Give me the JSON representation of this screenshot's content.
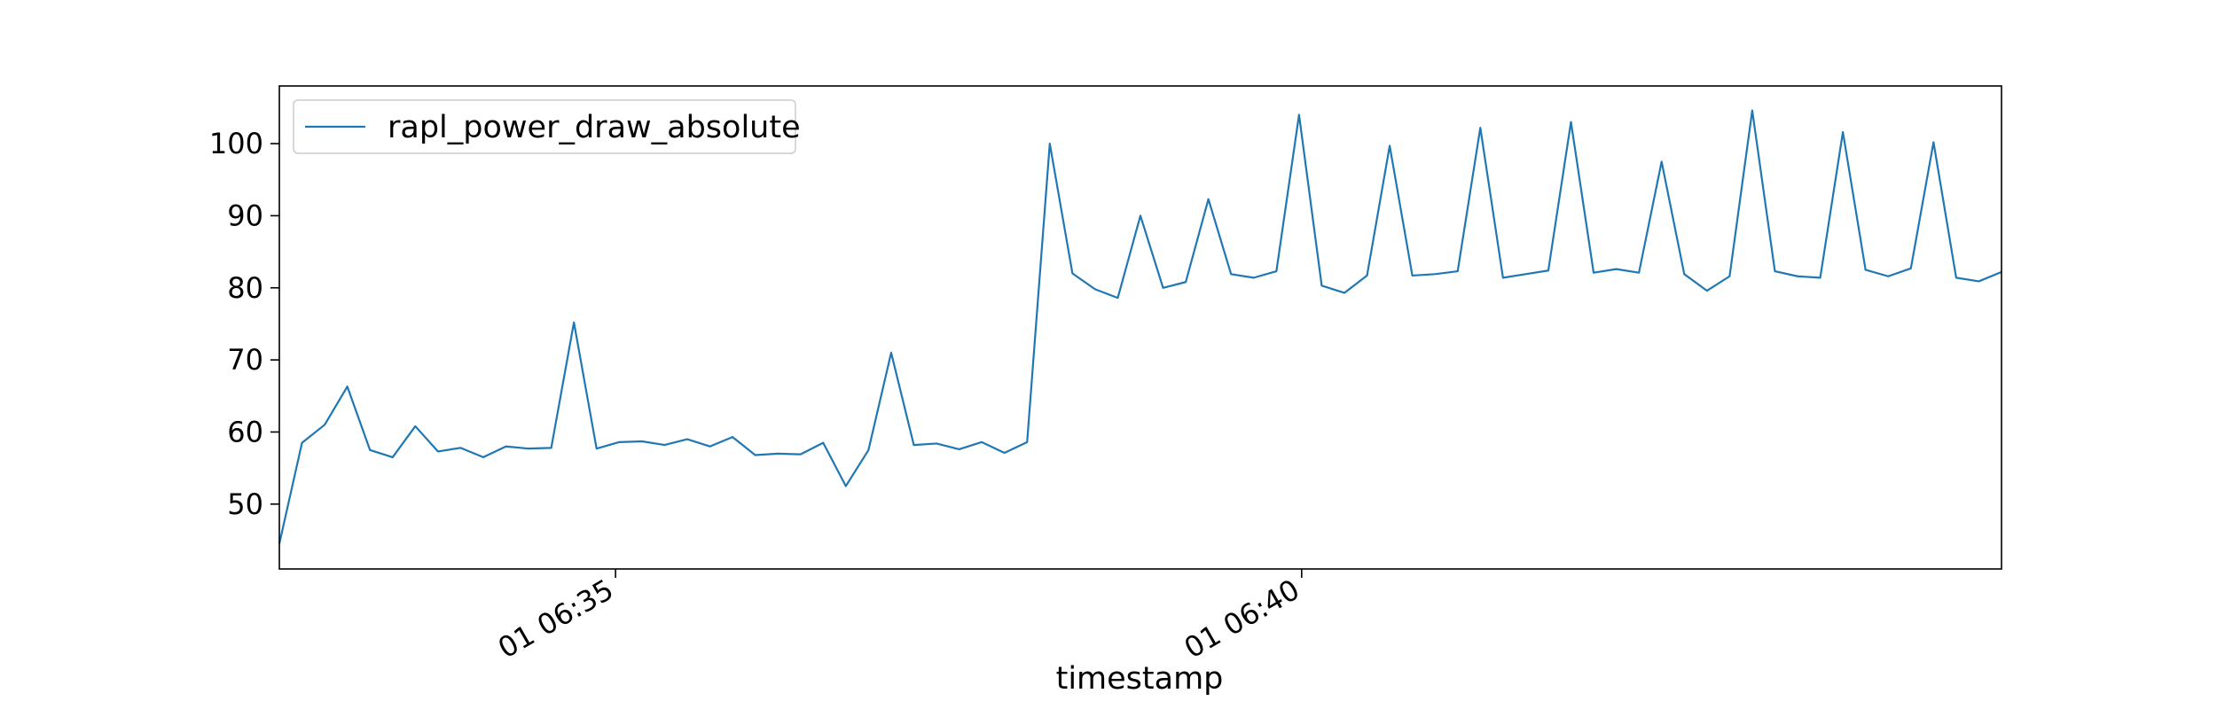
{
  "chart_data": {
    "type": "line",
    "xlabel": "timestamp",
    "ylabel": "",
    "x_start": "01 06:32:33",
    "x_end": "01 06:45:06",
    "x_tick_labels": [
      "01 06:35",
      "01 06:40"
    ],
    "x_ticks": [
      "01 06:35:00",
      "01 06:40:00"
    ],
    "ylim": [
      41,
      108
    ],
    "yticks": [
      50,
      60,
      70,
      80,
      90,
      100
    ],
    "grid": false,
    "legend": "top-left",
    "colors": {
      "line": "#1f77b4"
    },
    "series": [
      {
        "name": "rapl_power_draw_absolute",
        "values": [
          44.5,
          58.5,
          61.0,
          66.3,
          57.5,
          56.5,
          60.8,
          57.3,
          57.8,
          56.5,
          58.0,
          57.7,
          57.8,
          75.2,
          57.7,
          58.6,
          58.7,
          58.2,
          59.0,
          58.0,
          59.3,
          56.8,
          57.0,
          56.9,
          58.5,
          52.5,
          57.5,
          71.0,
          58.2,
          58.4,
          57.6,
          58.6,
          57.1,
          58.6,
          100.0,
          82.0,
          79.8,
          78.6,
          90.0,
          80.0,
          80.8,
          92.3,
          81.9,
          81.4,
          82.3,
          104.0,
          80.3,
          79.3,
          81.7,
          99.7,
          81.7,
          81.9,
          82.3,
          102.2,
          81.4,
          81.9,
          82.4,
          103.0,
          82.1,
          82.6,
          82.1,
          97.5,
          81.9,
          79.6,
          81.6,
          104.6,
          82.3,
          81.6,
          81.4,
          101.6,
          82.5,
          81.6,
          82.7,
          100.2,
          81.4,
          80.9,
          82.2
        ]
      }
    ]
  }
}
